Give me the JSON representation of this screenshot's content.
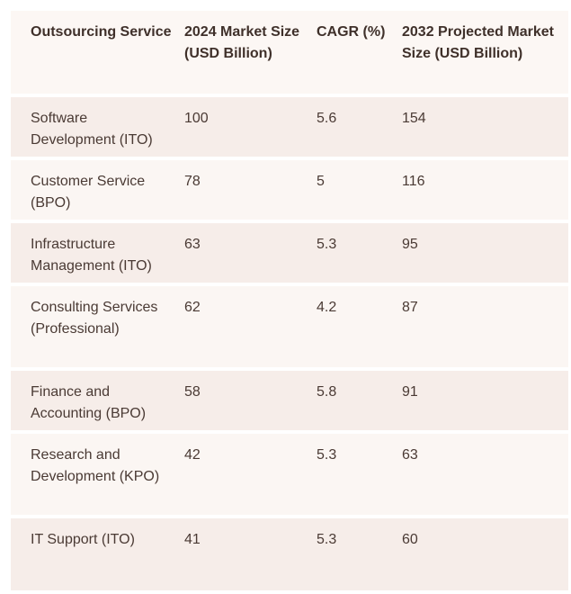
{
  "table": {
    "headers": [
      "Outsourcing Service",
      "2024 Market Size (USD Billion)",
      "CAGR (%)",
      "2032 Projected Market Size (USD Billion)"
    ],
    "rows": [
      [
        "Software Development (ITO)",
        "100",
        "5.6",
        "154"
      ],
      [
        "Customer Service (BPO)",
        "78",
        "5",
        "116"
      ],
      [
        "Infrastructure Management (ITO)",
        "63",
        "5.3",
        "95"
      ],
      [
        "Consulting Services (Professional)",
        "62",
        "4.2",
        "87"
      ],
      [
        "Finance and Accounting (BPO)",
        "58",
        "5.8",
        "91"
      ],
      [
        "Research and Development (KPO)",
        "42",
        "5.3",
        "63"
      ],
      [
        "IT Support (ITO)",
        "41",
        "5.3",
        "60"
      ]
    ]
  },
  "colors": {
    "header_bg": "#fcf7f4",
    "row_shade_bg": "#f6ede9",
    "row_plain_bg": "#fbf6f3",
    "text": "#4a3a34"
  }
}
